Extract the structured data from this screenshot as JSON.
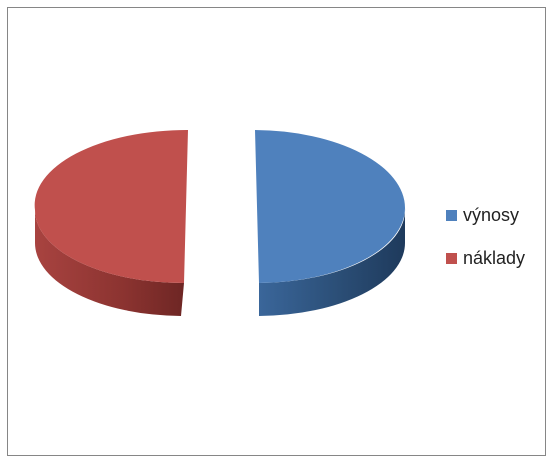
{
  "chart_data": {
    "type": "pie",
    "style": "3d-exploded",
    "title": "",
    "legend_position": "right",
    "slices": [
      {
        "label": "výnosy",
        "value": 50,
        "color": "#4F81BD",
        "side_color": "#2A4C73"
      },
      {
        "label": "náklady",
        "value": 50,
        "color": "#C0504D",
        "side_color": "#8E3432"
      }
    ]
  }
}
